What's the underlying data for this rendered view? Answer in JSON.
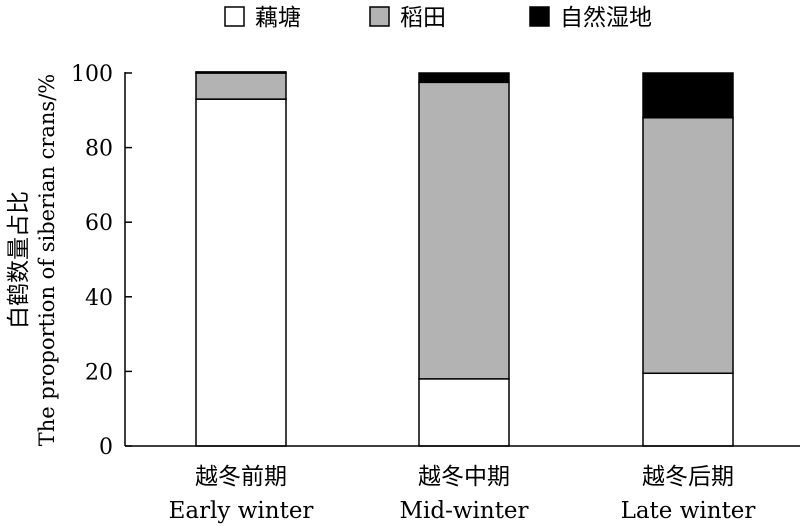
{
  "chart_data": {
    "type": "bar",
    "stacked": true,
    "categories": [
      {
        "zh": "越冬前期",
        "en": "Early winter"
      },
      {
        "zh": "越冬中期",
        "en": "Mid-winter"
      },
      {
        "zh": "越冬后期",
        "en": "Late winter"
      }
    ],
    "series": [
      {
        "name": "藕塘",
        "color": "#ffffff",
        "values": [
          93,
          18,
          19.5
        ]
      },
      {
        "name": "稻田",
        "color": "#b3b3b3",
        "values": [
          7,
          79.5,
          68.5
        ]
      },
      {
        "name": "自然湿地",
        "color": "#000000",
        "values": [
          0.3,
          2.5,
          12
        ]
      }
    ],
    "ylabel_zh": "白鹤数量占比",
    "ylabel_en": "The proportion of siberian crans/%",
    "ylim": [
      0,
      100
    ],
    "yticks": [
      0,
      20,
      40,
      60,
      80,
      100
    ],
    "legend_position": "top"
  }
}
